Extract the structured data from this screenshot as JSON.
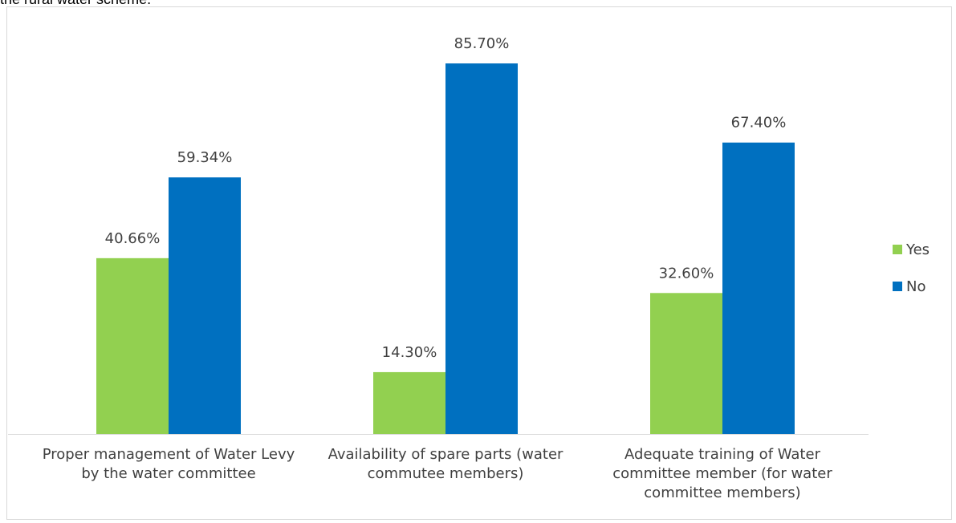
{
  "caption": "the rural water scheme.",
  "chart_data": {
    "type": "bar",
    "categories": [
      "Proper management of Water Levy by the water committee",
      "Availability of spare parts (water commutee members)",
      "Adequate training of Water committee member (for water committee members)"
    ],
    "category_lines": [
      [
        "Proper management of Water Levy",
        "by the water committee"
      ],
      [
        "Availability of spare parts (water",
        "commutee members)"
      ],
      [
        "Adequate training of Water",
        "committee member (for water",
        "committee members)"
      ]
    ],
    "series": [
      {
        "name": "Yes",
        "color": "#92d050",
        "values": [
          40.66,
          14.3,
          32.6
        ],
        "labels": [
          "40.66%",
          "14.30%",
          "32.60%"
        ]
      },
      {
        "name": "No",
        "color": "#0070c0",
        "values": [
          59.34,
          85.7,
          67.4
        ],
        "labels": [
          "59.34%",
          "85.70%",
          "67.40%"
        ]
      }
    ],
    "ylim": [
      0,
      100
    ],
    "grid": false,
    "legend_position": "right",
    "title": "",
    "xlabel": "",
    "ylabel": ""
  }
}
